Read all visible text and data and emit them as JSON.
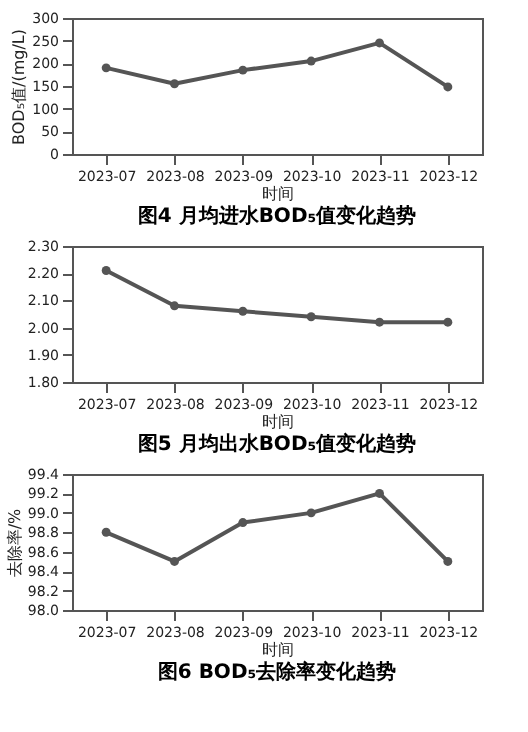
{
  "chart_data": [
    {
      "type": "line",
      "title": "图4 月均进水BOD₅值变化趋势",
      "xlabel": "时间",
      "ylabel": "BOD₅值/(mg/L)",
      "categories": [
        "2023-07",
        "2023-08",
        "2023-09",
        "2023-10",
        "2023-11",
        "2023-12"
      ],
      "series": [
        {
          "color": "#555555",
          "values": [
            190,
            155,
            185,
            205,
            245,
            148
          ]
        }
      ],
      "ylim": [
        0,
        300
      ],
      "yticks": [
        0,
        50,
        100,
        150,
        200,
        250,
        300
      ],
      "marker": "circle",
      "grid": false
    },
    {
      "type": "line",
      "title": "图5 月均出水BOD₅值变化趋势",
      "xlabel": "时间",
      "categories": [
        "2023-07",
        "2023-08",
        "2023-09",
        "2023-10",
        "2023-11",
        "2023-12"
      ],
      "series": [
        {
          "color": "#555555",
          "values": [
            2.21,
            2.08,
            2.06,
            2.04,
            2.02,
            2.02
          ]
        }
      ],
      "ylim": [
        1.8,
        2.3
      ],
      "yticks": [
        {
          "value": 1.8,
          "label": "1.80"
        },
        {
          "value": 1.9,
          "label": "1.90"
        },
        {
          "value": 2.0,
          "label": "2.00"
        },
        {
          "value": 2.1,
          "label": "2.10"
        },
        {
          "value": 2.2,
          "label": "2.20"
        },
        {
          "value": 2.3,
          "label": "2.30"
        }
      ],
      "marker": "circle",
      "grid": false
    },
    {
      "type": "line",
      "title": "图6 BOD₅去除率变化趋势",
      "xlabel": "时间",
      "ylabel": "去除率/%",
      "categories": [
        "2023-07",
        "2023-08",
        "2023-09",
        "2023-10",
        "2023-11",
        "2023-12"
      ],
      "series": [
        {
          "color": "#555555",
          "values": [
            98.8,
            98.5,
            98.9,
            99.0,
            99.2,
            98.5
          ]
        }
      ],
      "ylim": [
        98.0,
        99.4
      ],
      "yticks": [
        {
          "value": 98.0,
          "label": "98.0"
        },
        {
          "value": 98.2,
          "label": "98.2"
        },
        {
          "value": 98.4,
          "label": "98.4"
        },
        {
          "value": 98.6,
          "label": "98.6"
        },
        {
          "value": 98.8,
          "label": "98.8"
        },
        {
          "value": 99.0,
          "label": "99.0"
        },
        {
          "value": 99.2,
          "label": "99.2"
        },
        {
          "value": 99.4,
          "label": "99.4"
        }
      ],
      "marker": "circle",
      "grid": false
    }
  ]
}
